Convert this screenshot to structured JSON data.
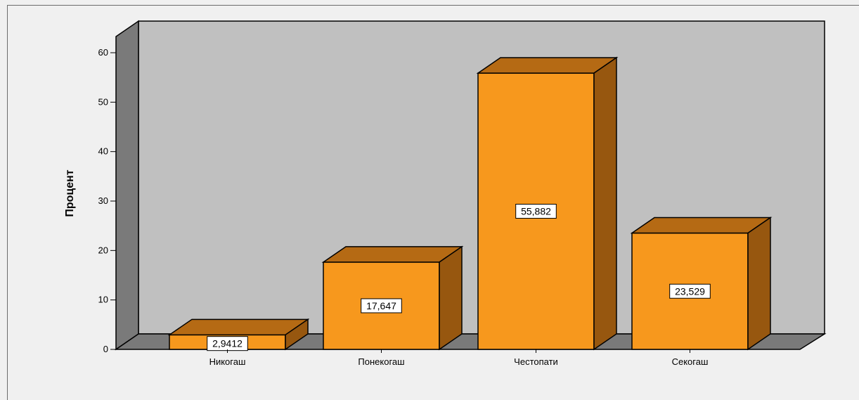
{
  "chart_data": {
    "type": "bar",
    "categories": [
      "Никогаш",
      "Понекогаш",
      "Честопати",
      "Секогаш"
    ],
    "values": [
      2.9412,
      17.647,
      55.882,
      23.529
    ],
    "data_labels": [
      "2,9412",
      "17,647",
      "55,882",
      "23,529"
    ],
    "ylabel": "Процент",
    "ylim": [
      0,
      60
    ],
    "yticks": [
      0,
      10,
      20,
      30,
      40,
      50,
      60
    ],
    "grid": false,
    "legend": "none",
    "three_d": true,
    "colors": {
      "bar_front": "#f7981d",
      "bar_top": "#b56a14",
      "bar_side": "#97570f",
      "back_wall": "#c0c0c0",
      "side_wall": "#7a7a7a",
      "floor": "#7a7a7a"
    }
  }
}
